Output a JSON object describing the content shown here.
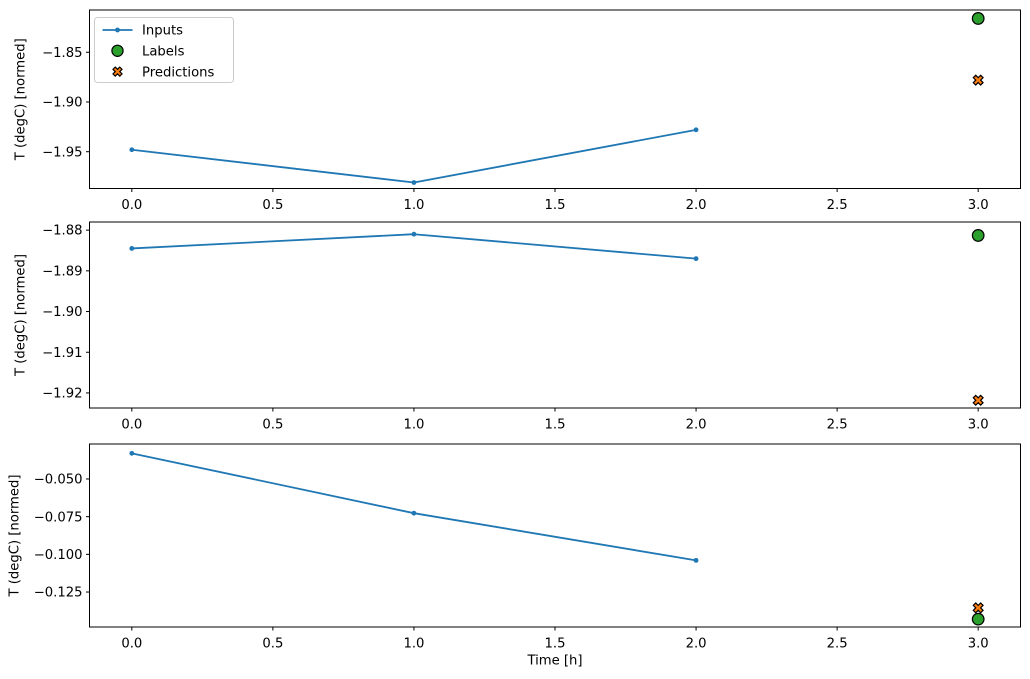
{
  "figure": {
    "background": "#ffffff",
    "text_color": "#000000",
    "axis_color": "#000000",
    "legend": {
      "position": "upper left",
      "border_color": "#cccccc",
      "background": "#ffffff",
      "entries": [
        {
          "label": "Inputs",
          "marker": "line-dot",
          "color": "#1f77b4",
          "edge": "#1f77b4"
        },
        {
          "label": "Labels",
          "marker": "circle",
          "color": "#2ca02c",
          "edge": "#000000"
        },
        {
          "label": "Predictions",
          "marker": "x",
          "color": "#ff7f0e",
          "edge": "#000000"
        }
      ]
    }
  },
  "chart_data": [
    {
      "type": "line",
      "title": "",
      "xlabel": "",
      "ylabel": "T (degC) [normed]",
      "xlim": [
        -0.15,
        3.15
      ],
      "ylim": [
        -1.987,
        -1.8075
      ],
      "grid": false,
      "xtick_values": [
        0.0,
        0.5,
        1.0,
        1.5,
        2.0,
        2.5,
        3.0
      ],
      "xtick_labels": [
        "0.0",
        "0.5",
        "1.0",
        "1.5",
        "2.0",
        "2.5",
        "3.0"
      ],
      "ytick_values": [
        -1.85,
        -1.9,
        -1.95
      ],
      "ytick_labels": [
        "−1.85",
        "−1.90",
        "−1.95"
      ],
      "series": [
        {
          "name": "Inputs",
          "kind": "line-dot",
          "color": "#1f77b4",
          "x": [
            0,
            1,
            2
          ],
          "y": [
            -1.948,
            -1.981,
            -1.928
          ]
        },
        {
          "name": "Labels",
          "kind": "circle",
          "color": "#2ca02c",
          "x": [
            3
          ],
          "y": [
            -1.816
          ]
        },
        {
          "name": "Predictions",
          "kind": "x",
          "color": "#ff7f0e",
          "x": [
            3
          ],
          "y": [
            -1.878
          ]
        }
      ]
    },
    {
      "type": "line",
      "title": "",
      "xlabel": "",
      "ylabel": "T (degC) [normed]",
      "xlim": [
        -0.15,
        3.15
      ],
      "ylim": [
        -1.9237,
        -1.878
      ],
      "grid": false,
      "xtick_values": [
        0.0,
        0.5,
        1.0,
        1.5,
        2.0,
        2.5,
        3.0
      ],
      "xtick_labels": [
        "0.0",
        "0.5",
        "1.0",
        "1.5",
        "2.0",
        "2.5",
        "3.0"
      ],
      "ytick_values": [
        -1.88,
        -1.89,
        -1.9,
        -1.91,
        -1.92
      ],
      "ytick_labels": [
        "−1.88",
        "−1.89",
        "−1.90",
        "−1.91",
        "−1.92"
      ],
      "series": [
        {
          "name": "Inputs",
          "kind": "line-dot",
          "color": "#1f77b4",
          "x": [
            0,
            1,
            2
          ],
          "y": [
            -1.8845,
            -1.881,
            -1.887
          ]
        },
        {
          "name": "Labels",
          "kind": "circle",
          "color": "#2ca02c",
          "x": [
            3
          ],
          "y": [
            -1.8813
          ]
        },
        {
          "name": "Predictions",
          "kind": "x",
          "color": "#ff7f0e",
          "x": [
            3
          ],
          "y": [
            -1.9218
          ]
        }
      ]
    },
    {
      "type": "line",
      "title": "",
      "xlabel": "Time [h]",
      "ylabel": "T (degC) [normed]",
      "xlim": [
        -0.15,
        3.15
      ],
      "ylim": [
        -0.1482,
        -0.0268
      ],
      "grid": false,
      "xtick_values": [
        0.0,
        0.5,
        1.0,
        1.5,
        2.0,
        2.5,
        3.0
      ],
      "xtick_labels": [
        "0.0",
        "0.5",
        "1.0",
        "1.5",
        "2.0",
        "2.5",
        "3.0"
      ],
      "ytick_values": [
        -0.05,
        -0.075,
        -0.1,
        -0.125
      ],
      "ytick_labels": [
        "−0.050",
        "−0.075",
        "−0.100",
        "−0.125"
      ],
      "series": [
        {
          "name": "Inputs",
          "kind": "line-dot",
          "color": "#1f77b4",
          "x": [
            0,
            1,
            2
          ],
          "y": [
            -0.033,
            -0.0727,
            -0.104
          ]
        },
        {
          "name": "Labels",
          "kind": "circle",
          "color": "#2ca02c",
          "x": [
            3
          ],
          "y": [
            -0.143
          ]
        },
        {
          "name": "Predictions",
          "kind": "x",
          "color": "#ff7f0e",
          "x": [
            3
          ],
          "y": [
            -0.1355
          ]
        }
      ]
    }
  ]
}
